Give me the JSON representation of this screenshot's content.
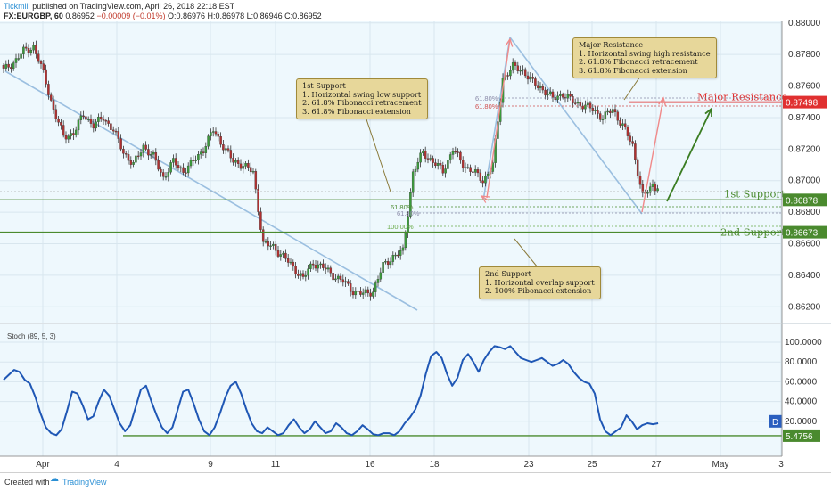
{
  "header": {
    "brand": "Tickmill",
    "published": "published on TradingView.com, April 26, 2018 22:18 EST",
    "symbol_line": "FX:EURGBP, 60",
    "price": "0.86952",
    "change": "−0.00009 (−0.01%)",
    "ohlc": "O:0.86976 H:0.86978 L:0.86946 C:0.86952"
  },
  "footer": {
    "created_with": "Created with",
    "platform": "TradingView"
  },
  "annotations": {
    "support1": {
      "title": "1st Support",
      "lines": [
        "1. Horizontal swing low support",
        "2. 61.8% Fibonacci retracement",
        "3. 61.8% Fibonacci extension"
      ]
    },
    "resistance": {
      "title": "Major Resistance",
      "lines": [
        "1. Horizontal swing high resistance",
        "2. 61.8% Fibonacci retracement",
        "3. 61.8% Fibonacci extension"
      ]
    },
    "support2": {
      "title": "2nd Support",
      "lines": [
        "1. Horizontal overlap support",
        "2. 100% Fibonacci extension"
      ]
    }
  },
  "colors": {
    "plot_bg": "#eef8fd",
    "up_candle": "#3a9b3a",
    "down_candle": "#b03030",
    "support_line": "#4a8a2e",
    "resistance_line": "#e03030",
    "trend_line": "#9bbfe0",
    "stoch_line": "#1f57b5",
    "arrow_green": "#3a7d22",
    "arrow_red": "#f08a8a"
  },
  "chart_data": [
    {
      "type": "candlestick",
      "title": "",
      "x_tick_labels": [
        "Apr",
        "4",
        "9",
        "11",
        "16",
        "18",
        "23",
        "25",
        "27",
        "May",
        "3"
      ],
      "y_tick_labels": [
        "0.86200",
        "0.86400",
        "0.86600",
        "0.86800",
        "0.87000",
        "0.87200",
        "0.87400",
        "0.87600",
        "0.87800",
        "0.88000"
      ],
      "ylim": [
        0.861,
        0.8801
      ],
      "levels": [
        {
          "name": "Major Resistance",
          "label": "Major Resistance",
          "value": 0.87498,
          "value_label": "0.87498"
        },
        {
          "name": "1st Support",
          "label": "1st Support",
          "value": 0.86878,
          "value_label": "0.86878"
        },
        {
          "name": "2nd Support",
          "label": "2nd Support",
          "value": 0.86673,
          "value_label": "2nd Support"
        },
        {
          "name": "2nd Support value",
          "value": 0.86673,
          "value_label": "0.86673"
        }
      ],
      "fib_labels": [
        "61.80%",
        "61.80%",
        "61.80%",
        "61.80%",
        "100.00%"
      ],
      "close_path": [
        [
          0,
          0.877
        ],
        [
          4,
          0.8775
        ],
        [
          8,
          0.8782
        ],
        [
          12,
          0.8785
        ],
        [
          16,
          0.8768
        ],
        [
          20,
          0.8745
        ],
        [
          24,
          0.8728
        ],
        [
          28,
          0.873
        ],
        [
          32,
          0.8742
        ],
        [
          36,
          0.8735
        ],
        [
          40,
          0.874
        ],
        [
          44,
          0.8732
        ],
        [
          48,
          0.8718
        ],
        [
          52,
          0.871
        ],
        [
          56,
          0.8722
        ],
        [
          60,
          0.8715
        ],
        [
          64,
          0.8702
        ],
        [
          68,
          0.8712
        ],
        [
          72,
          0.8706
        ],
        [
          76,
          0.8712
        ],
        [
          80,
          0.872
        ],
        [
          84,
          0.8732
        ],
        [
          88,
          0.8722
        ],
        [
          92,
          0.8712
        ],
        [
          96,
          0.871
        ],
        [
          100,
          0.8705
        ],
        [
          104,
          0.866
        ],
        [
          108,
          0.8658
        ],
        [
          112,
          0.8652
        ],
        [
          116,
          0.8645
        ],
        [
          120,
          0.8638
        ],
        [
          124,
          0.8648
        ],
        [
          128,
          0.8645
        ],
        [
          132,
          0.864
        ],
        [
          136,
          0.8636
        ],
        [
          140,
          0.863
        ],
        [
          144,
          0.8628
        ],
        [
          148,
          0.863
        ],
        [
          152,
          0.8646
        ],
        [
          156,
          0.8652
        ],
        [
          160,
          0.8655
        ],
        [
          164,
          0.8705
        ],
        [
          168,
          0.8718
        ],
        [
          172,
          0.8712
        ],
        [
          176,
          0.8706
        ],
        [
          180,
          0.872
        ],
        [
          184,
          0.871
        ],
        [
          188,
          0.8706
        ],
        [
          192,
          0.87
        ],
        [
          196,
          0.871
        ],
        [
          200,
          0.8765
        ],
        [
          204,
          0.8772
        ],
        [
          208,
          0.877
        ],
        [
          212,
          0.8762
        ],
        [
          216,
          0.8758
        ],
        [
          220,
          0.8752
        ],
        [
          224,
          0.8755
        ],
        [
          228,
          0.875
        ],
        [
          232,
          0.8748
        ],
        [
          236,
          0.8745
        ],
        [
          240,
          0.874
        ],
        [
          244,
          0.8745
        ],
        [
          248,
          0.8735
        ],
        [
          252,
          0.8722
        ],
        [
          256,
          0.869
        ],
        [
          258,
          0.8693
        ],
        [
          260,
          0.8697
        ],
        [
          262,
          0.8695
        ]
      ],
      "stoch": {
        "name": "Stoch (89, 5, 3)",
        "ylim": [
          0,
          100
        ],
        "y_tick_labels": [
          "20.0000",
          "40.0000",
          "60.0000",
          "80.0000",
          "100.0000"
        ],
        "current_label": "D",
        "current_value": 20.0,
        "level_value": 5.4756,
        "level_label": "5.4756",
        "values": [
          [
            0,
            62
          ],
          [
            2,
            67
          ],
          [
            4,
            72
          ],
          [
            6,
            70
          ],
          [
            8,
            62
          ],
          [
            10,
            58
          ],
          [
            12,
            45
          ],
          [
            14,
            28
          ],
          [
            16,
            14
          ],
          [
            18,
            8
          ],
          [
            20,
            6
          ],
          [
            22,
            12
          ],
          [
            24,
            30
          ],
          [
            26,
            50
          ],
          [
            28,
            48
          ],
          [
            30,
            36
          ],
          [
            32,
            22
          ],
          [
            34,
            25
          ],
          [
            36,
            40
          ],
          [
            38,
            52
          ],
          [
            40,
            46
          ],
          [
            42,
            32
          ],
          [
            44,
            18
          ],
          [
            46,
            10
          ],
          [
            48,
            16
          ],
          [
            50,
            34
          ],
          [
            52,
            52
          ],
          [
            54,
            56
          ],
          [
            56,
            40
          ],
          [
            58,
            26
          ],
          [
            60,
            14
          ],
          [
            62,
            8
          ],
          [
            64,
            14
          ],
          [
            66,
            32
          ],
          [
            68,
            50
          ],
          [
            70,
            52
          ],
          [
            72,
            38
          ],
          [
            74,
            22
          ],
          [
            76,
            10
          ],
          [
            78,
            6
          ],
          [
            80,
            14
          ],
          [
            82,
            28
          ],
          [
            84,
            44
          ],
          [
            86,
            56
          ],
          [
            88,
            60
          ],
          [
            90,
            48
          ],
          [
            92,
            32
          ],
          [
            94,
            18
          ],
          [
            96,
            10
          ],
          [
            98,
            8
          ],
          [
            100,
            14
          ],
          [
            102,
            10
          ],
          [
            104,
            6
          ],
          [
            106,
            8
          ],
          [
            108,
            16
          ],
          [
            110,
            22
          ],
          [
            112,
            14
          ],
          [
            114,
            8
          ],
          [
            116,
            12
          ],
          [
            118,
            20
          ],
          [
            120,
            14
          ],
          [
            122,
            8
          ],
          [
            124,
            10
          ],
          [
            126,
            18
          ],
          [
            128,
            14
          ],
          [
            130,
            8
          ],
          [
            132,
            6
          ],
          [
            134,
            10
          ],
          [
            136,
            16
          ],
          [
            138,
            12
          ],
          [
            140,
            7
          ],
          [
            142,
            6
          ],
          [
            144,
            8
          ],
          [
            146,
            8
          ],
          [
            148,
            6
          ],
          [
            150,
            10
          ],
          [
            152,
            18
          ],
          [
            154,
            24
          ],
          [
            156,
            32
          ],
          [
            158,
            46
          ],
          [
            160,
            68
          ],
          [
            162,
            86
          ],
          [
            164,
            90
          ],
          [
            166,
            84
          ],
          [
            168,
            68
          ],
          [
            170,
            56
          ],
          [
            172,
            64
          ],
          [
            174,
            82
          ],
          [
            176,
            88
          ],
          [
            178,
            80
          ],
          [
            180,
            70
          ],
          [
            182,
            82
          ],
          [
            184,
            90
          ],
          [
            186,
            96
          ],
          [
            188,
            95
          ],
          [
            190,
            93
          ],
          [
            192,
            96
          ],
          [
            194,
            90
          ],
          [
            196,
            84
          ],
          [
            198,
            82
          ],
          [
            200,
            80
          ],
          [
            202,
            82
          ],
          [
            204,
            84
          ],
          [
            206,
            80
          ],
          [
            208,
            76
          ],
          [
            210,
            78
          ],
          [
            212,
            82
          ],
          [
            214,
            78
          ],
          [
            216,
            70
          ],
          [
            218,
            64
          ],
          [
            220,
            60
          ],
          [
            222,
            58
          ],
          [
            224,
            48
          ],
          [
            226,
            22
          ],
          [
            228,
            10
          ],
          [
            230,
            6
          ],
          [
            232,
            10
          ],
          [
            234,
            14
          ],
          [
            236,
            26
          ],
          [
            238,
            20
          ],
          [
            240,
            12
          ],
          [
            242,
            16
          ],
          [
            244,
            18
          ],
          [
            246,
            17
          ],
          [
            248,
            18
          ]
        ]
      }
    }
  ]
}
